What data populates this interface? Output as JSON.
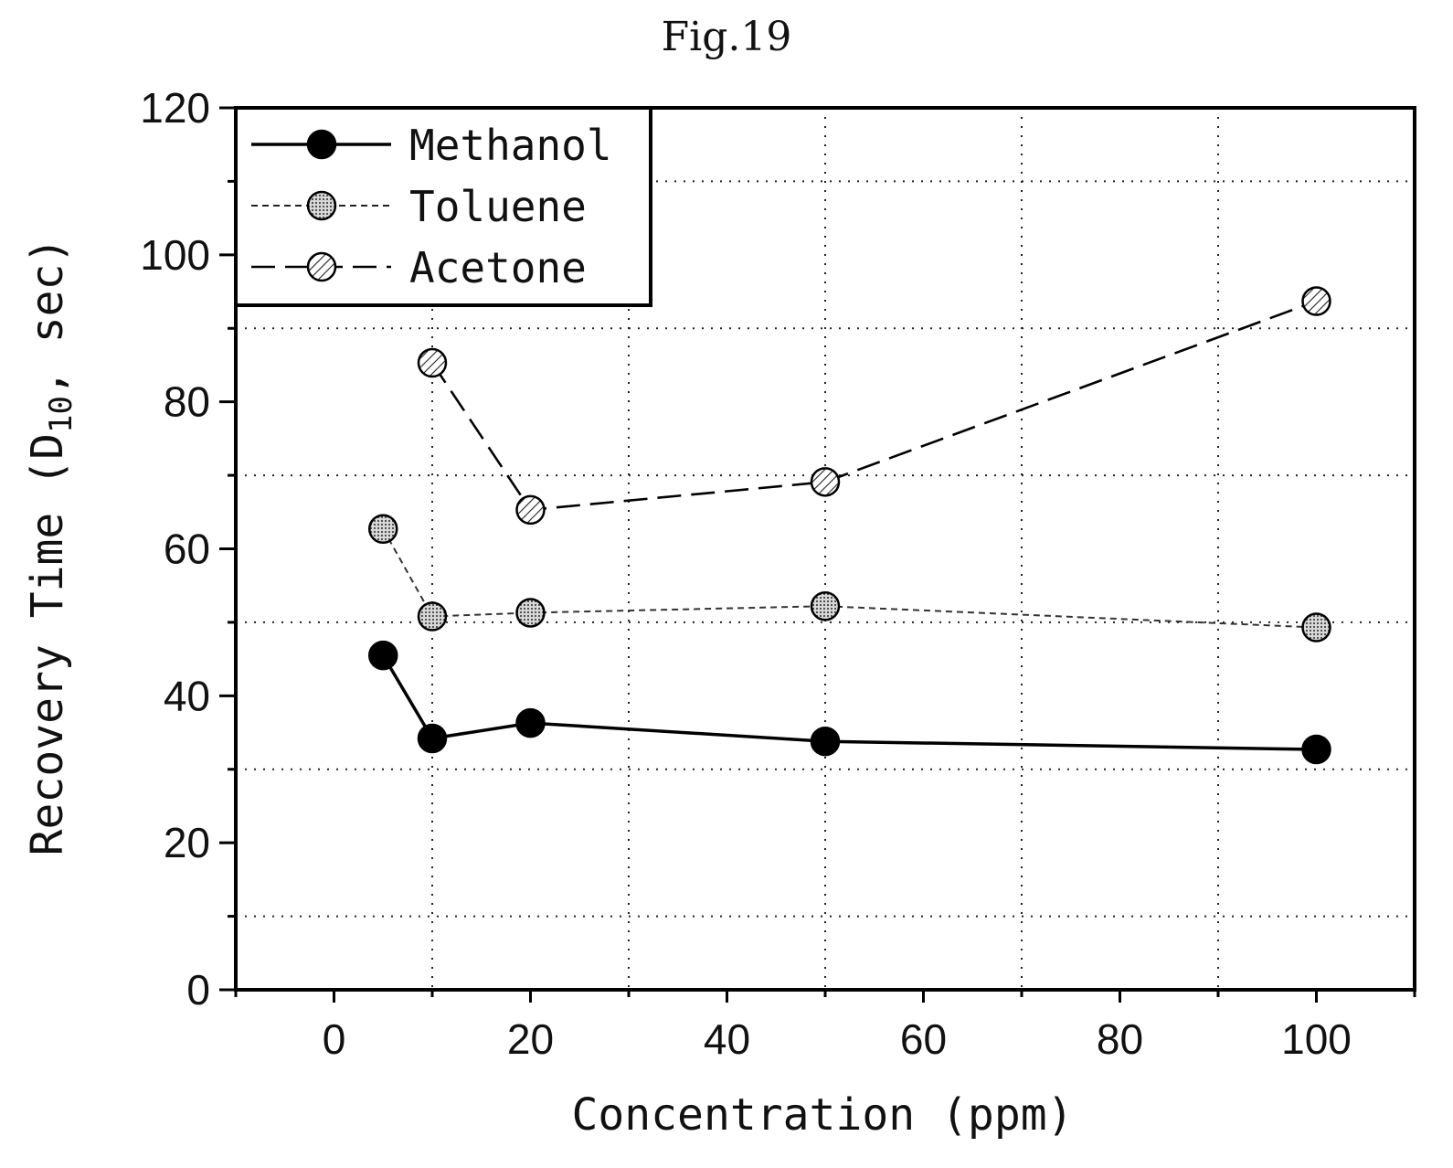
{
  "figure_label": "Fig.19",
  "chart_data": {
    "type": "line",
    "xlabel": "Concentration (ppm)",
    "ylabel": "Recovery Time (D",
    "ylabel_sub": "10",
    "ylabel_end": ", sec)",
    "xlim": [
      -10,
      110
    ],
    "ylim": [
      0,
      120
    ],
    "xticks": [
      0,
      20,
      40,
      60,
      80,
      100
    ],
    "yticks": [
      0,
      20,
      40,
      60,
      80,
      100,
      120
    ],
    "grid": true,
    "legend_position": "top-left",
    "series": [
      {
        "name": "Methanol",
        "line": "solid",
        "marker": "black-filled",
        "color": "#000000",
        "x": [
          5,
          10,
          20,
          50,
          100
        ],
        "y": [
          45.5,
          34.2,
          36.3,
          33.8,
          32.7
        ]
      },
      {
        "name": "Toluene",
        "line": "short-dash",
        "marker": "dotted-gray",
        "color": "#9a9a9a",
        "x": [
          5,
          10,
          20,
          50,
          100
        ],
        "y": [
          62.7,
          50.8,
          51.3,
          52.2,
          49.3
        ]
      },
      {
        "name": "Acetone",
        "line": "long-dash",
        "marker": "hatched",
        "color": "#ffffff",
        "x": [
          10,
          20,
          50,
          100
        ],
        "y": [
          85.3,
          65.3,
          69.1,
          93.7
        ]
      }
    ]
  }
}
